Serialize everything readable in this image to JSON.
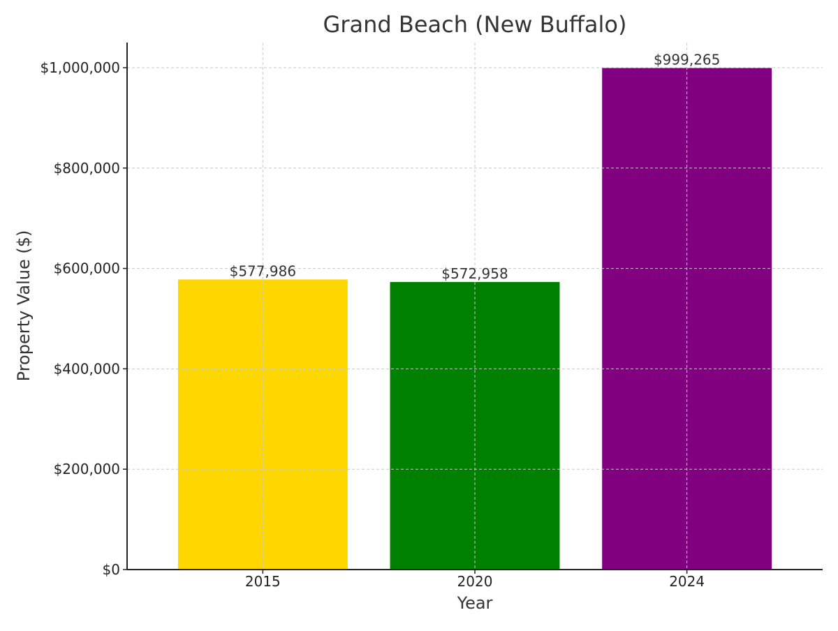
{
  "chart_data": {
    "type": "bar",
    "title": "Grand Beach (New Buffalo)",
    "xlabel": "Year",
    "ylabel": "Property Value ($)",
    "categories": [
      "2015",
      "2020",
      "2024"
    ],
    "values": [
      577986,
      572958,
      999265
    ],
    "data_labels": [
      "$577,986",
      "$572,958",
      "$999,265"
    ],
    "colors": [
      "#FFD700",
      "#008000",
      "#800080"
    ],
    "ylim": [
      0,
      1050000
    ],
    "yticks": [
      0,
      200000,
      400000,
      600000,
      800000,
      1000000
    ],
    "ytick_labels": [
      "$0",
      "$200,000",
      "$400,000",
      "$600,000",
      "$800,000",
      "$1,000,000"
    ],
    "grid": true,
    "legend": false
  }
}
